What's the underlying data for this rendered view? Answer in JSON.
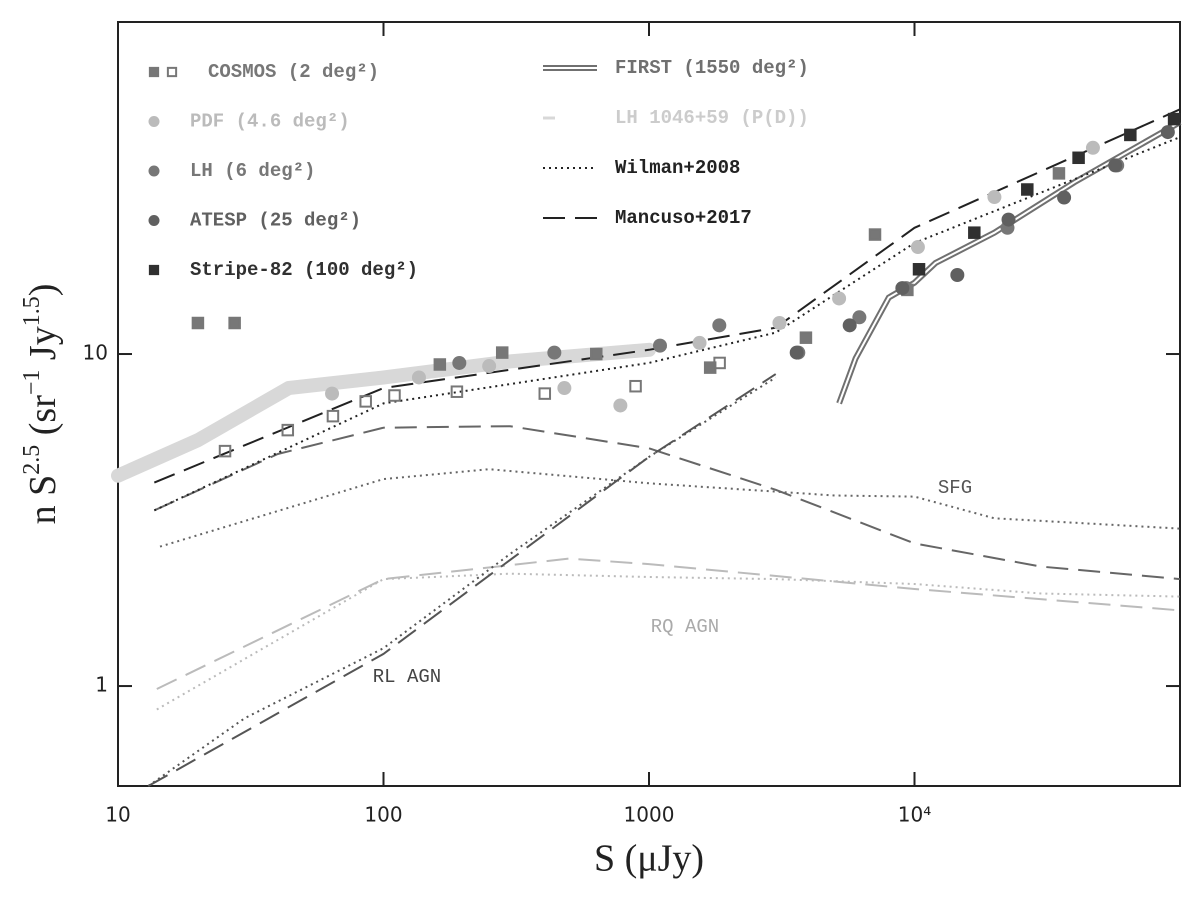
{
  "chart_data": {
    "type": "scatter",
    "log_x": true,
    "log_y": true,
    "xlim": [
      10,
      100000
    ],
    "ylim": [
      0.5,
      100
    ],
    "xticks": [
      10,
      100,
      1000,
      {
        "value": 10000,
        "label": "10⁴"
      }
    ],
    "yticks": [
      1,
      10
    ],
    "x_label": "S (μJy)",
    "y_label_parts": [
      "n S",
      "2.5",
      " (sr",
      "−1",
      " Jy",
      "1.5",
      ")"
    ],
    "legend": "upper left",
    "series": [
      {
        "name": "COSMOS (2 deg²)",
        "color": "#777777",
        "marker": "square",
        "x": [
          25.3,
          43.6,
          64.5,
          85.7,
          110,
          189,
          405,
          890,
          1845,
          163,
          280,
          633,
          1700,
          3900,
          7100,
          9400,
          35000,
          20,
          27.5
        ],
        "values": [
          5.1,
          5.9,
          6.5,
          7.2,
          7.5,
          7.7,
          7.6,
          8.0,
          9.4,
          9.3,
          10.1,
          10.0,
          9.1,
          11.2,
          22.9,
          15.6,
          35,
          12.4,
          12.4
        ],
        "filled": [
          false,
          false,
          false,
          false,
          false,
          false,
          false,
          false,
          false,
          true,
          true,
          true,
          true,
          true,
          true,
          true,
          true,
          true,
          true
        ]
      },
      {
        "name": "PDF (4.6 deg²)",
        "color": "#bbbbbb",
        "marker": "circle",
        "x": [
          64,
          136,
          250,
          480,
          780,
          1550,
          3100,
          5200,
          10300,
          20000,
          47000
        ],
        "values": [
          7.6,
          8.5,
          9.2,
          7.9,
          7.0,
          10.8,
          12.4,
          14.7,
          21,
          29.7,
          41.8
        ]
      },
      {
        "name": "LH (6 deg²)",
        "color": "#777777",
        "marker": "circle",
        "x": [
          193,
          440,
          1100,
          1840,
          3650,
          6200,
          9300,
          22400,
          58000
        ],
        "values": [
          9.4,
          10.1,
          10.6,
          12.2,
          10.1,
          12.9,
          15.8,
          24,
          37
        ]
      },
      {
        "name": "ATESP (25 deg²)",
        "color": "#606060",
        "marker": "circle",
        "x": [
          3600,
          5700,
          9000,
          14500,
          22600,
          36600,
          57000,
          90000
        ],
        "values": [
          10.1,
          12.2,
          15.8,
          17.3,
          25.4,
          29.6,
          37,
          46.6
        ]
      },
      {
        "name": "Stripe-82 (100 deg²)",
        "color": "#303030",
        "marker": "square",
        "x": [
          10400,
          16800,
          26600,
          41500,
          65000,
          95000
        ],
        "values": [
          18,
          23.2,
          31.3,
          39,
          45.7,
          51
        ]
      },
      {
        "name": "FIRST (1550 deg²)",
        "color": "#707070",
        "line": "double",
        "x": [
          5200,
          6000,
          8000,
          10000,
          12000,
          20000,
          40000,
          100000
        ],
        "values": [
          7.1,
          9.7,
          14.8,
          16.4,
          18.8,
          23.2,
          32.9,
          49.9
        ]
      },
      {
        "name": "LH 1046+59 (P(D))",
        "color": "#d8d8d8",
        "line": "band",
        "x": [
          10,
          20,
          44,
          100,
          300,
          1000
        ],
        "values": [
          4.3,
          5.5,
          7.9,
          8.5,
          9.5,
          10.3
        ]
      },
      {
        "name": "Wilman+2008",
        "color": "#222222",
        "line": "dotted",
        "x": [
          13.7,
          100,
          1000,
          3000,
          10000,
          100000
        ],
        "values": [
          3.38,
          7.1,
          9.4,
          11.6,
          21.6,
          45
        ]
      },
      {
        "name": "Mancuso+2017",
        "color": "#222222",
        "line": "dashed",
        "x": [
          13.7,
          100,
          1000,
          3000,
          10000,
          100000
        ],
        "values": [
          4.1,
          7.9,
          10.3,
          12,
          24,
          54.6
        ]
      }
    ],
    "components": [
      {
        "color": "#666666",
        "line": "dotted",
        "x": [
          14.4,
          100,
          250,
          1000,
          5000,
          10000,
          20000,
          100000
        ],
        "values": [
          2.63,
          4.2,
          4.5,
          4.08,
          3.75,
          3.72,
          3.2,
          2.98
        ]
      },
      {
        "color": "#666666",
        "line": "dashed",
        "x": [
          13.7,
          40,
          100,
          300,
          1000,
          3000,
          10000,
          30000,
          100000
        ],
        "values": [
          3.38,
          5.0,
          6.0,
          6.06,
          5.2,
          3.9,
          2.69,
          2.29,
          2.1
        ]
      },
      {
        "color": "#bbbbbb",
        "line": "dotted",
        "x": [
          14,
          100,
          300,
          1000,
          3000,
          10000,
          30000,
          100000
        ],
        "values": [
          0.85,
          2.1,
          2.18,
          2.13,
          2.1,
          2.03,
          1.9,
          1.86
        ]
      },
      {
        "color": "#bbbbbb",
        "line": "dashed",
        "x": [
          14,
          100,
          500,
          1000,
          10000,
          100000
        ],
        "values": [
          0.98,
          2.1,
          2.42,
          2.33,
          1.96,
          1.69
        ]
      },
      {
        "color": "#555555",
        "line": "dotted",
        "x": [
          13,
          30,
          100,
          300,
          1000,
          3000
        ],
        "values": [
          0.5,
          0.8,
          1.3,
          2.5,
          4.9,
          8.5
        ]
      },
      {
        "color": "#555555",
        "line": "dashed",
        "x": [
          13,
          100,
          1000,
          3000
        ],
        "values": [
          0.5,
          1.25,
          4.9,
          8.7
        ]
      }
    ],
    "annotations": [
      "SFG",
      "RQ AGN",
      "RL AGN"
    ]
  }
}
